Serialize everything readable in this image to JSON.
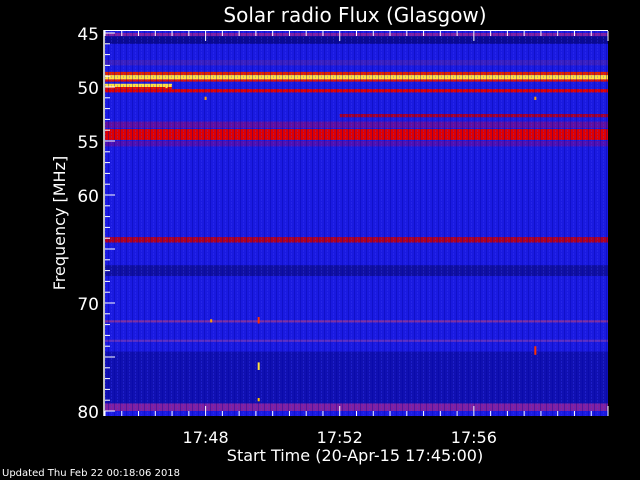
{
  "chart_data": {
    "type": "heatmap",
    "title": "Solar radio Flux (Glasgow)",
    "xlabel": "Start Time (20-Apr-15 17:45:00)",
    "ylabel": "Frequency [MHz]",
    "xlim": [
      "17:45",
      "18:00"
    ],
    "ylim": [
      45,
      80
    ],
    "y_inverted": true,
    "xticks": [
      "17:48",
      "17:52",
      "17:56"
    ],
    "yticks": [
      45,
      50,
      55,
      60,
      70,
      80
    ],
    "colormap": [
      "#000060",
      "#1010d8",
      "#3030ff",
      "#800080",
      "#d00000",
      "#ff3000",
      "#ffc000",
      "#ffff80"
    ],
    "background_color": "#1a1ae0",
    "bands": [
      {
        "f0": 45.0,
        "f1": 45.3,
        "t0": "17:45",
        "t1": "18:00",
        "color": "#8020a0"
      },
      {
        "f0": 45.3,
        "f1": 46.0,
        "t0": "17:45",
        "t1": "18:00",
        "color": "#0a0a90"
      },
      {
        "f0": 47.5,
        "f1": 48.0,
        "t0": "17:45",
        "t1": "18:00",
        "color": "#3a20c0"
      },
      {
        "f0": 48.6,
        "f1": 48.9,
        "t0": "17:45",
        "t1": "18:00",
        "color": "#e02000"
      },
      {
        "f0": 48.9,
        "f1": 49.3,
        "t0": "17:45",
        "t1": "18:00",
        "color": "#ffe040"
      },
      {
        "f0": 49.3,
        "f1": 49.5,
        "t0": "17:45",
        "t1": "18:00",
        "color": "#e01000"
      },
      {
        "f0": 49.7,
        "f1": 50.0,
        "t0": "17:45",
        "t1": "17:47",
        "color": "#ffe040"
      },
      {
        "f0": 50.0,
        "f1": 50.2,
        "t0": "17:45",
        "t1": "17:47",
        "color": "#e01000"
      },
      {
        "f0": 50.2,
        "f1": 50.5,
        "t0": "17:45",
        "t1": "18:00",
        "color": "#e00000"
      },
      {
        "f0": 52.5,
        "f1": 52.8,
        "t0": "17:52",
        "t1": "18:00",
        "color": "#a00030"
      },
      {
        "f0": 53.2,
        "f1": 53.8,
        "t0": "17:45",
        "t1": "18:00",
        "color": "#6010a0"
      },
      {
        "f0": 53.9,
        "f1": 54.9,
        "t0": "17:45",
        "t1": "18:00",
        "color": "#e00000"
      },
      {
        "f0": 55.0,
        "f1": 55.5,
        "t0": "17:45",
        "t1": "18:00",
        "color": "#5010b0"
      },
      {
        "f0": 63.9,
        "f1": 64.4,
        "t0": "17:45",
        "t1": "18:00",
        "color": "#b00020"
      },
      {
        "f0": 66.5,
        "f1": 67.5,
        "t0": "17:45",
        "t1": "18:00",
        "color": "#1010a0"
      },
      {
        "f0": 71.6,
        "f1": 71.8,
        "t0": "17:45",
        "t1": "18:00",
        "color": "#8030a0"
      },
      {
        "f0": 73.4,
        "f1": 73.6,
        "t0": "17:45",
        "t1": "18:00",
        "color": "#6030c0"
      },
      {
        "f0": 74.5,
        "f1": 80.0,
        "t0": "17:45",
        "t1": "18:00",
        "color": "#1010b0"
      },
      {
        "f0": 79.3,
        "f1": 80.0,
        "t0": "17:45",
        "t1": "18:00",
        "color": "#8020a0"
      }
    ],
    "bursts": [
      {
        "t": "17:46:50",
        "f0": 49.8,
        "f1": 50.1,
        "color": "#ffe040"
      },
      {
        "t": "17:48:00",
        "f0": 50.9,
        "f1": 51.2,
        "color": "#ffa000"
      },
      {
        "t": "17:49:35",
        "f0": 71.3,
        "f1": 71.9,
        "color": "#ff3000"
      },
      {
        "t": "17:49:35",
        "f0": 75.5,
        "f1": 76.2,
        "color": "#ffe040"
      },
      {
        "t": "17:49:35",
        "f0": 78.8,
        "f1": 79.1,
        "color": "#ffc000"
      },
      {
        "t": "17:57:50",
        "f0": 50.9,
        "f1": 51.2,
        "color": "#ffa000"
      },
      {
        "t": "17:57:50",
        "f0": 74.0,
        "f1": 74.8,
        "color": "#ff3000"
      },
      {
        "t": "17:48:10",
        "f0": 71.5,
        "f1": 71.8,
        "color": "#ffa000"
      }
    ]
  },
  "footer": {
    "updated": "Updated Thu Feb 22 00:18:06 2018"
  }
}
